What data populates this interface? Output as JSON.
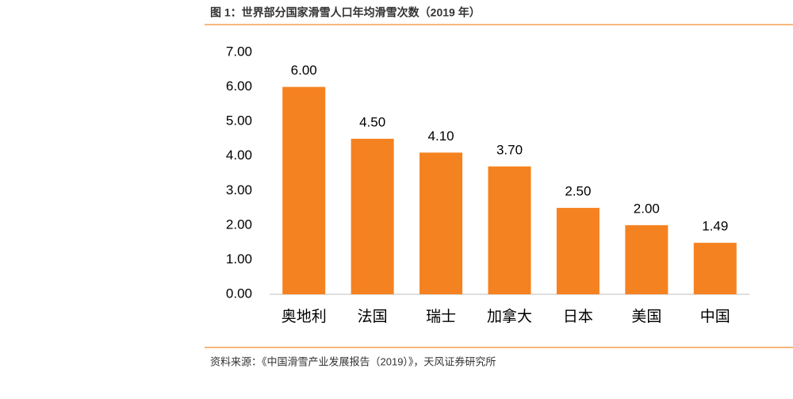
{
  "chart_data": {
    "type": "bar",
    "title": "图 1：世界部分国家滑雪人口年均滑雪次数（2019 年）",
    "source": "资料来源：《中国滑雪产业发展报告（2019）》，天风证券研究所",
    "categories": [
      "奥地利",
      "法国",
      "瑞士",
      "加拿大",
      "日本",
      "美国",
      "中国"
    ],
    "values": [
      6.0,
      4.5,
      4.1,
      3.7,
      2.5,
      2.0,
      1.49
    ],
    "value_labels": [
      "6.00",
      "4.50",
      "4.10",
      "3.70",
      "2.50",
      "2.00",
      "1.49"
    ],
    "color": "#f58220",
    "ylim": [
      0,
      7
    ],
    "yticks": [
      {
        "value": 0,
        "label": "0.00"
      },
      {
        "value": 1,
        "label": "1.00"
      },
      {
        "value": 2,
        "label": "2.00"
      },
      {
        "value": 3,
        "label": "3.00"
      },
      {
        "value": 4,
        "label": "4.00"
      },
      {
        "value": 5,
        "label": "5.00"
      },
      {
        "value": 6,
        "label": "6.00"
      },
      {
        "value": 7,
        "label": "7.00"
      }
    ],
    "grid": false
  }
}
